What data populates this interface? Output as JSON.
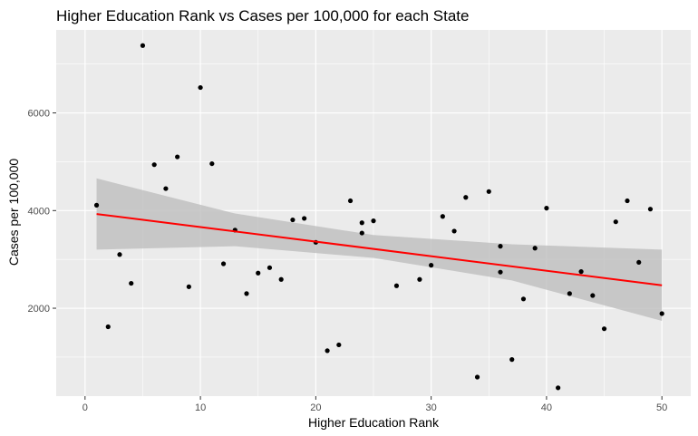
{
  "chart_data": {
    "type": "scatter",
    "title": "Higher Education Rank vs Cases per 100,000 for each State",
    "xlabel": "Higher Education Rank",
    "ylabel": "Cases per 100,000",
    "xlim": [
      -2.5,
      52.5
    ],
    "ylim": [
      200,
      7700
    ],
    "x_ticks": [
      0,
      10,
      20,
      30,
      40,
      50
    ],
    "y_ticks": [
      2000,
      4000,
      6000
    ],
    "grid": true,
    "legend": "none",
    "colors": {
      "panel": "#ebebeb",
      "grid_major": "#ffffff",
      "points": "#000000",
      "fit_line": "#ff0000",
      "confidence_band": "#bebebe"
    },
    "points": [
      {
        "x": 1,
        "y": 4110
      },
      {
        "x": 2,
        "y": 1620
      },
      {
        "x": 3,
        "y": 3100
      },
      {
        "x": 4,
        "y": 2510
      },
      {
        "x": 5,
        "y": 7380
      },
      {
        "x": 6,
        "y": 4940
      },
      {
        "x": 7,
        "y": 4450
      },
      {
        "x": 8,
        "y": 5100
      },
      {
        "x": 9,
        "y": 2440
      },
      {
        "x": 10,
        "y": 6520
      },
      {
        "x": 11,
        "y": 4960
      },
      {
        "x": 12,
        "y": 2910
      },
      {
        "x": 13,
        "y": 3600
      },
      {
        "x": 14,
        "y": 2300
      },
      {
        "x": 15,
        "y": 2720
      },
      {
        "x": 16,
        "y": 2830
      },
      {
        "x": 17,
        "y": 2590
      },
      {
        "x": 18,
        "y": 3810
      },
      {
        "x": 19,
        "y": 3840
      },
      {
        "x": 20,
        "y": 3350
      },
      {
        "x": 21,
        "y": 1130
      },
      {
        "x": 22,
        "y": 1250
      },
      {
        "x": 23,
        "y": 4200
      },
      {
        "x": 24,
        "y": 3750
      },
      {
        "x": 24,
        "y": 3540
      },
      {
        "x": 25,
        "y": 3790
      },
      {
        "x": 27,
        "y": 2460
      },
      {
        "x": 29,
        "y": 2590
      },
      {
        "x": 30,
        "y": 2880
      },
      {
        "x": 31,
        "y": 3880
      },
      {
        "x": 32,
        "y": 3580
      },
      {
        "x": 33,
        "y": 4270
      },
      {
        "x": 34,
        "y": 590
      },
      {
        "x": 35,
        "y": 4390
      },
      {
        "x": 36,
        "y": 3270
      },
      {
        "x": 36,
        "y": 2740
      },
      {
        "x": 37,
        "y": 950
      },
      {
        "x": 38,
        "y": 2190
      },
      {
        "x": 39,
        "y": 3230
      },
      {
        "x": 40,
        "y": 4050
      },
      {
        "x": 41,
        "y": 370
      },
      {
        "x": 42,
        "y": 2300
      },
      {
        "x": 43,
        "y": 2750
      },
      {
        "x": 44,
        "y": 2260
      },
      {
        "x": 45,
        "y": 1580
      },
      {
        "x": 46,
        "y": 3770
      },
      {
        "x": 47,
        "y": 4200
      },
      {
        "x": 48,
        "y": 2940
      },
      {
        "x": 49,
        "y": 4030
      },
      {
        "x": 50,
        "y": 1890
      }
    ],
    "fit_line": [
      {
        "x": 1,
        "y": 3930
      },
      {
        "x": 50,
        "y": 2470
      }
    ],
    "confidence_band": [
      {
        "x": 1,
        "lower": 3200,
        "upper": 4660
      },
      {
        "x": 13,
        "lower": 3270,
        "upper": 3940
      },
      {
        "x": 25,
        "lower": 3030,
        "upper": 3500
      },
      {
        "x": 37,
        "lower": 2570,
        "upper": 3310
      },
      {
        "x": 50,
        "lower": 1740,
        "upper": 3200
      }
    ]
  }
}
